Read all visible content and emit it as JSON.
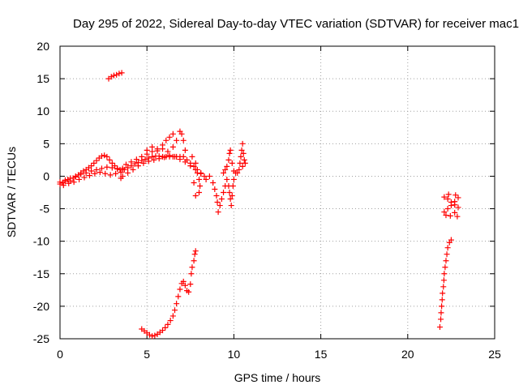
{
  "chart_data": {
    "type": "scatter",
    "title": "Day 295 of 2022, Sidereal Day-to-day VTEC variation (SDTVAR) for receiver mac1",
    "xlabel": "GPS time / hours",
    "ylabel": "SDTVAR / TECUs",
    "xlim": [
      0,
      25
    ],
    "ylim": [
      -25,
      20
    ],
    "xticks": [
      "0",
      "5",
      "10",
      "15",
      "20",
      "25"
    ],
    "yticks": [
      "20",
      "15",
      "10",
      "5",
      "0",
      "-5",
      "-10",
      "-15",
      "-20",
      "-25"
    ],
    "grid": true,
    "marker": "plus",
    "series": [
      {
        "name": "SDTVAR",
        "color": "#ff0000",
        "points": [
          [
            0.0,
            -1.2
          ],
          [
            0.15,
            -1.0
          ],
          [
            0.3,
            -0.8
          ],
          [
            0.45,
            -0.5
          ],
          [
            0.6,
            -0.7
          ],
          [
            0.75,
            -0.3
          ],
          [
            0.9,
            -0.1
          ],
          [
            1.05,
            0.2
          ],
          [
            1.2,
            0.5
          ],
          [
            1.35,
            0.8
          ],
          [
            1.5,
            1.0
          ],
          [
            1.65,
            1.3
          ],
          [
            1.8,
            1.6
          ],
          [
            1.95,
            2.0
          ],
          [
            2.1,
            2.4
          ],
          [
            2.25,
            2.8
          ],
          [
            2.4,
            3.1
          ],
          [
            2.55,
            3.2
          ],
          [
            2.7,
            3.0
          ],
          [
            2.85,
            2.5
          ],
          [
            3.0,
            2.0
          ],
          [
            3.15,
            1.6
          ],
          [
            3.3,
            1.2
          ],
          [
            3.45,
            1.0
          ],
          [
            3.6,
            1.0
          ],
          [
            0.0,
            -0.9
          ],
          [
            0.3,
            -0.6
          ],
          [
            0.6,
            -0.3
          ],
          [
            0.9,
            0.0
          ],
          [
            1.2,
            0.3
          ],
          [
            1.5,
            0.5
          ],
          [
            1.8,
            0.8
          ],
          [
            2.1,
            1.0
          ],
          [
            2.4,
            1.2
          ],
          [
            2.7,
            1.4
          ],
          [
            3.0,
            1.3
          ],
          [
            3.3,
            1.1
          ],
          [
            3.6,
            1.2
          ],
          [
            0.2,
            -1.4
          ],
          [
            0.5,
            -1.1
          ],
          [
            0.8,
            -0.9
          ],
          [
            1.1,
            -0.5
          ],
          [
            1.4,
            -0.2
          ],
          [
            1.7,
            0.1
          ],
          [
            2.0,
            0.4
          ],
          [
            2.3,
            0.6
          ],
          [
            2.6,
            0.4
          ],
          [
            2.9,
            0.2
          ],
          [
            3.2,
            0.4
          ],
          [
            3.5,
            0.6
          ],
          [
            3.6,
            0.0
          ],
          [
            3.5,
            -0.3
          ],
          [
            3.7,
            1.0
          ],
          [
            3.9,
            1.3
          ],
          [
            4.1,
            1.6
          ],
          [
            4.3,
            1.9
          ],
          [
            4.5,
            2.1
          ],
          [
            4.7,
            2.4
          ],
          [
            4.9,
            2.6
          ],
          [
            5.1,
            2.8
          ],
          [
            5.3,
            3.0
          ],
          [
            5.5,
            3.1
          ],
          [
            5.7,
            3.1
          ],
          [
            5.9,
            3.0
          ],
          [
            6.1,
            3.0
          ],
          [
            6.3,
            3.0
          ],
          [
            6.5,
            3.0
          ],
          [
            6.7,
            3.0
          ],
          [
            6.9,
            3.0
          ],
          [
            7.1,
            3.0
          ],
          [
            7.3,
            2.5
          ],
          [
            7.5,
            2.0
          ],
          [
            7.7,
            1.5
          ],
          [
            7.9,
            1.0
          ],
          [
            8.1,
            0.5
          ],
          [
            3.8,
            1.8
          ],
          [
            4.1,
            2.2
          ],
          [
            4.4,
            2.6
          ],
          [
            4.7,
            3.0
          ],
          [
            5.0,
            3.4
          ],
          [
            5.3,
            3.8
          ],
          [
            5.6,
            4.2
          ],
          [
            5.9,
            4.8
          ],
          [
            6.1,
            5.5
          ],
          [
            6.3,
            6.0
          ],
          [
            6.5,
            6.5
          ],
          [
            5.0,
            4.0
          ],
          [
            5.3,
            4.5
          ],
          [
            5.6,
            3.9
          ],
          [
            5.9,
            4.2
          ],
          [
            6.2,
            3.8
          ],
          [
            6.5,
            4.5
          ],
          [
            6.7,
            5.5
          ],
          [
            6.9,
            6.9
          ],
          [
            7.0,
            6.5
          ],
          [
            7.1,
            5.5
          ],
          [
            7.2,
            4.0
          ],
          [
            3.9,
            0.5
          ],
          [
            4.2,
            1.0
          ],
          [
            4.5,
            1.6
          ],
          [
            4.8,
            2.0
          ],
          [
            5.1,
            2.3
          ],
          [
            5.4,
            2.5
          ],
          [
            5.7,
            2.7
          ],
          [
            6.0,
            2.9
          ],
          [
            6.3,
            3.2
          ],
          [
            6.6,
            3.0
          ],
          [
            6.9,
            2.6
          ],
          [
            7.2,
            2.2
          ],
          [
            7.5,
            1.6
          ],
          [
            7.8,
            1.0
          ],
          [
            8.1,
            0.4
          ],
          [
            8.3,
            0.0
          ],
          [
            8.4,
            -0.5
          ],
          [
            7.6,
            3.0
          ],
          [
            7.8,
            2.0
          ],
          [
            7.9,
            0.5
          ],
          [
            8.0,
            -0.5
          ],
          [
            8.05,
            -1.5
          ],
          [
            8.0,
            -2.5
          ],
          [
            7.8,
            -3.0
          ],
          [
            7.7,
            -1.0
          ],
          [
            8.6,
            0.0
          ],
          [
            8.8,
            -1.0
          ],
          [
            8.9,
            -2.0
          ],
          [
            9.0,
            -3.0
          ],
          [
            9.05,
            -4.0
          ],
          [
            9.1,
            -5.5
          ],
          [
            9.2,
            -4.5
          ],
          [
            9.3,
            -3.5
          ],
          [
            9.4,
            -2.5
          ],
          [
            9.5,
            -1.5
          ],
          [
            9.6,
            -0.5
          ],
          [
            9.7,
            -1.5
          ],
          [
            9.75,
            -2.5
          ],
          [
            9.8,
            -3.5
          ],
          [
            9.85,
            -4.5
          ],
          [
            9.9,
            -3.0
          ],
          [
            9.95,
            -1.5
          ],
          [
            10.0,
            -0.5
          ],
          [
            9.4,
            0.5
          ],
          [
            9.5,
            1.0
          ],
          [
            9.6,
            1.5
          ],
          [
            9.7,
            2.5
          ],
          [
            9.75,
            3.5
          ],
          [
            9.8,
            4.0
          ],
          [
            9.9,
            2.0
          ],
          [
            10.0,
            0.8
          ],
          [
            10.1,
            0.5
          ],
          [
            10.2,
            0.5
          ],
          [
            10.3,
            1.0
          ],
          [
            10.35,
            2.0
          ],
          [
            10.4,
            3.0
          ],
          [
            10.45,
            4.0
          ],
          [
            10.5,
            5.0
          ],
          [
            10.55,
            3.5
          ],
          [
            10.6,
            2.5
          ],
          [
            10.65,
            2.0
          ],
          [
            10.5,
            1.5
          ],
          [
            2.8,
            15.0
          ],
          [
            2.95,
            15.3
          ],
          [
            3.1,
            15.5
          ],
          [
            3.25,
            15.6
          ],
          [
            3.4,
            15.8
          ],
          [
            3.55,
            15.9
          ],
          [
            4.7,
            -23.5
          ],
          [
            4.85,
            -23.8
          ],
          [
            5.0,
            -24.1
          ],
          [
            5.15,
            -24.4
          ],
          [
            5.3,
            -24.6
          ],
          [
            5.45,
            -24.5
          ],
          [
            5.6,
            -24.3
          ],
          [
            5.75,
            -24.0
          ],
          [
            5.9,
            -23.7
          ],
          [
            6.05,
            -23.3
          ],
          [
            6.2,
            -22.8
          ],
          [
            6.35,
            -22.2
          ],
          [
            6.5,
            -21.5
          ],
          [
            6.6,
            -20.6
          ],
          [
            6.7,
            -19.6
          ],
          [
            6.8,
            -18.5
          ],
          [
            6.9,
            -17.4
          ],
          [
            7.0,
            -16.5
          ],
          [
            7.1,
            -16.2
          ],
          [
            7.2,
            -16.8
          ],
          [
            7.3,
            -17.6
          ],
          [
            7.4,
            -17.8
          ],
          [
            7.5,
            -16.6
          ],
          [
            7.55,
            -15.0
          ],
          [
            7.6,
            -14.0
          ],
          [
            7.7,
            -13.0
          ],
          [
            7.75,
            -12.0
          ],
          [
            7.8,
            -11.5
          ],
          [
            21.85,
            -23.2
          ],
          [
            21.9,
            -22.0
          ],
          [
            21.92,
            -21.0
          ],
          [
            21.95,
            -20.0
          ],
          [
            21.98,
            -19.0
          ],
          [
            22.0,
            -18.0
          ],
          [
            22.05,
            -17.0
          ],
          [
            22.08,
            -16.0
          ],
          [
            22.1,
            -15.0
          ],
          [
            22.15,
            -14.0
          ],
          [
            22.2,
            -13.0
          ],
          [
            22.25,
            -12.0
          ],
          [
            22.3,
            -11.0
          ],
          [
            22.4,
            -10.2
          ],
          [
            22.5,
            -9.8
          ],
          [
            22.1,
            -3.2
          ],
          [
            22.3,
            -3.5
          ],
          [
            22.5,
            -4.0
          ],
          [
            22.7,
            -4.4
          ],
          [
            22.9,
            -4.8
          ],
          [
            22.1,
            -5.5
          ],
          [
            22.3,
            -5.0
          ],
          [
            22.5,
            -4.5
          ],
          [
            22.7,
            -3.9
          ],
          [
            22.9,
            -3.3
          ],
          [
            22.2,
            -6.0
          ],
          [
            22.45,
            -6.1
          ],
          [
            22.7,
            -5.6
          ],
          [
            22.85,
            -6.2
          ],
          [
            22.35,
            -2.8
          ],
          [
            22.75,
            -2.9
          ]
        ]
      }
    ]
  }
}
